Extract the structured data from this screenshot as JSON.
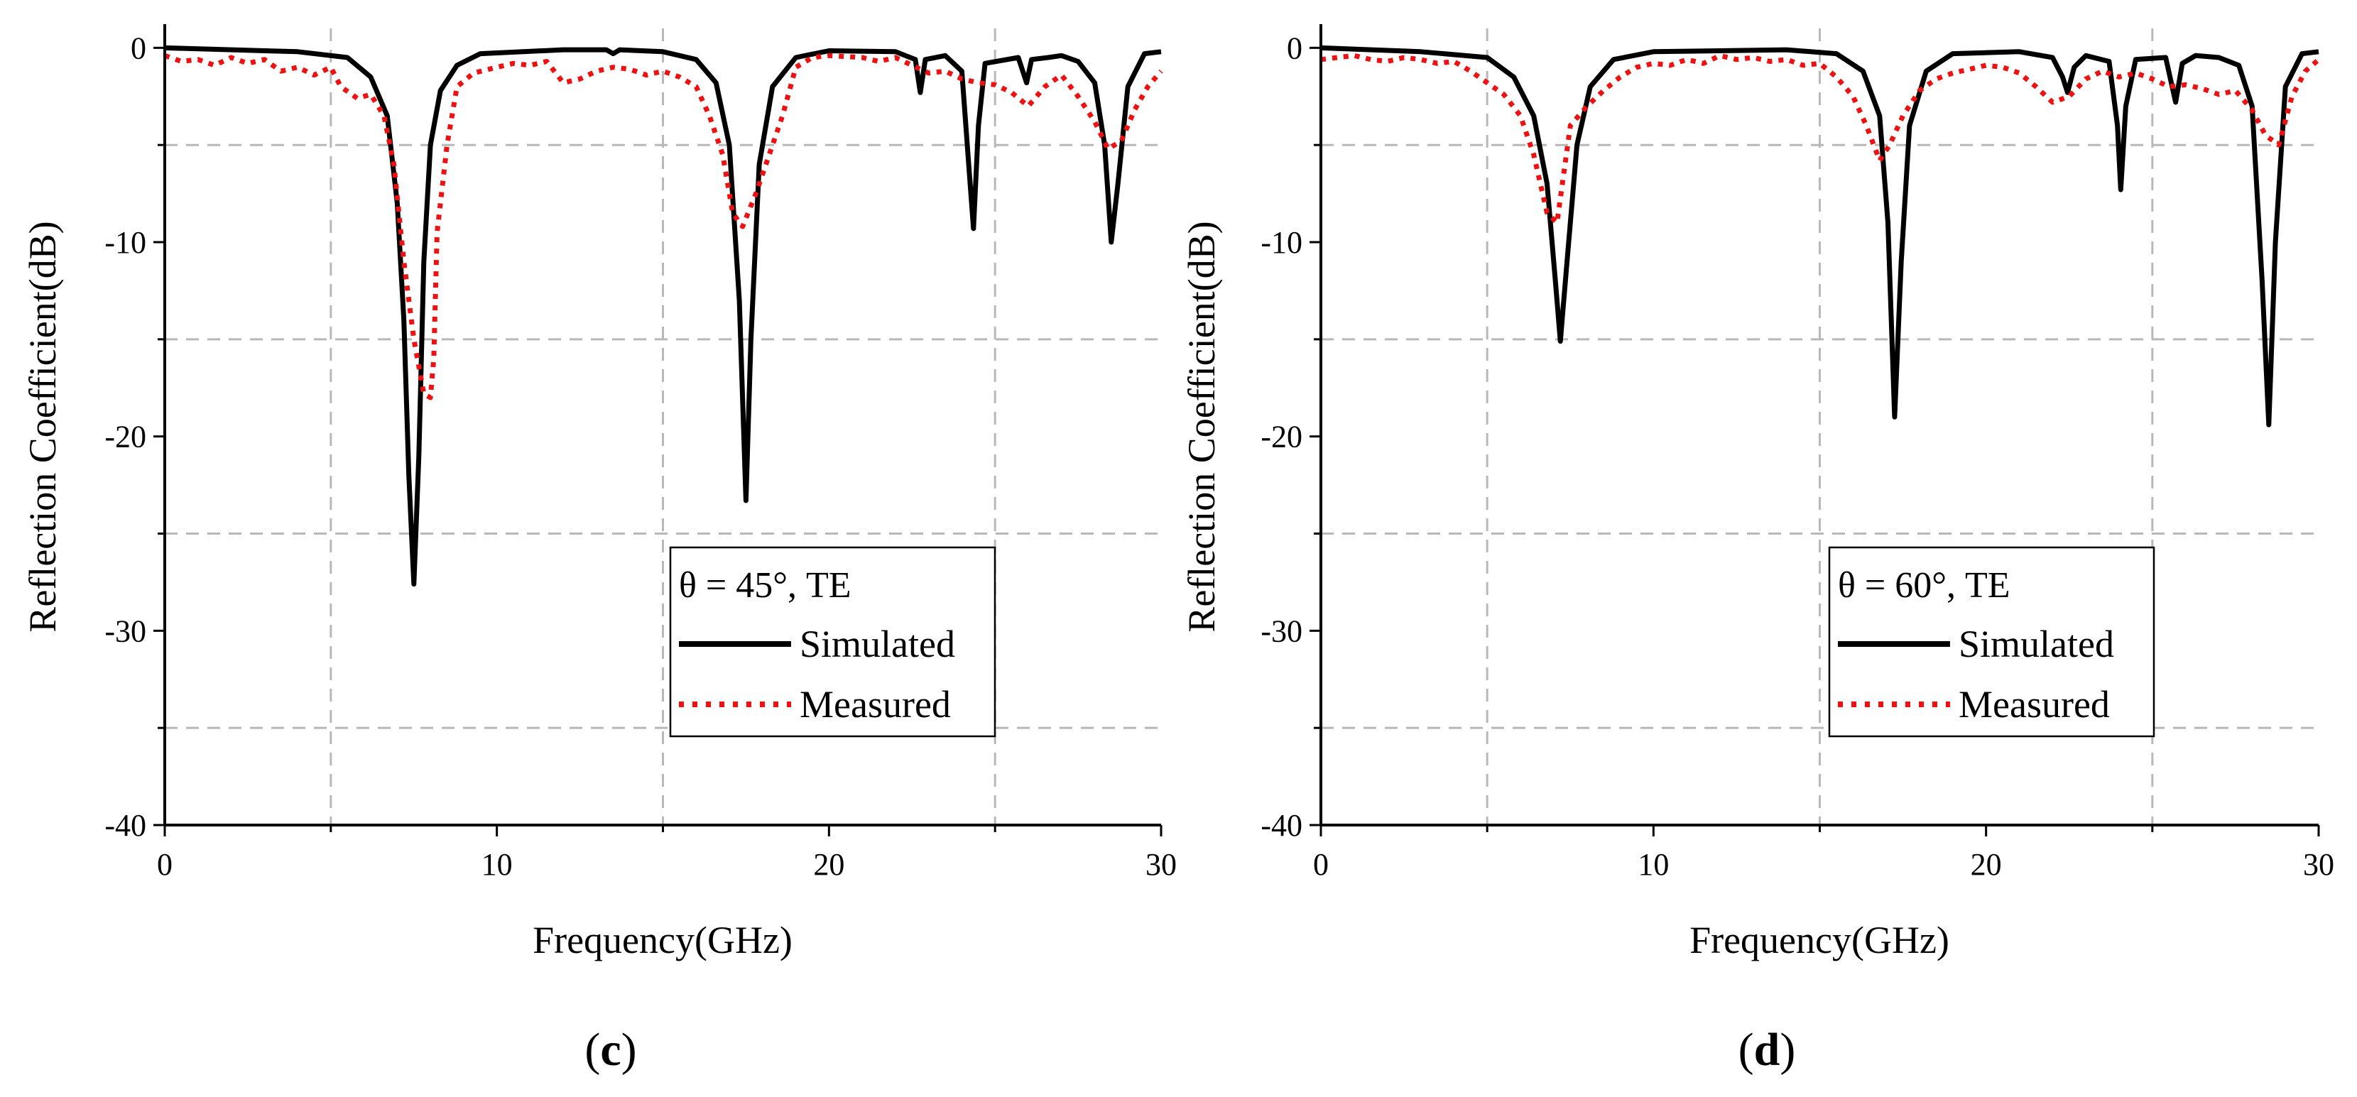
{
  "chart_data": [
    {
      "type": "line",
      "panel_label": "(c)",
      "panel_label_letter": "c",
      "legend_title": "θ = 45°, TE",
      "xlabel": "Frequency(GHz)",
      "ylabel": "Reflection Coefficient(dB)",
      "xlim": [
        0,
        30
      ],
      "ylim": [
        -40,
        1
      ],
      "xticks": [
        0,
        10,
        20,
        30
      ],
      "yticks": [
        -40,
        -30,
        -20,
        -10,
        0
      ],
      "grid": true,
      "legend_position": "lower-right",
      "series": [
        {
          "name": "Simulated",
          "style": "solid",
          "color": "#000000",
          "points": [
            [
              0,
              0
            ],
            [
              4,
              -0.2
            ],
            [
              5.5,
              -0.5
            ],
            [
              6.2,
              -1.5
            ],
            [
              6.7,
              -3.5
            ],
            [
              7.0,
              -8
            ],
            [
              7.2,
              -14
            ],
            [
              7.35,
              -22
            ],
            [
              7.5,
              -27.6
            ],
            [
              7.65,
              -21
            ],
            [
              7.8,
              -11
            ],
            [
              8.0,
              -5
            ],
            [
              8.3,
              -2.2
            ],
            [
              8.8,
              -0.9
            ],
            [
              9.5,
              -0.3
            ],
            [
              12,
              -0.1
            ],
            [
              13.3,
              -0.1
            ],
            [
              13.5,
              -0.3
            ],
            [
              13.7,
              -0.1
            ],
            [
              15,
              -0.2
            ],
            [
              16,
              -0.6
            ],
            [
              16.6,
              -1.8
            ],
            [
              17.0,
              -5
            ],
            [
              17.3,
              -13
            ],
            [
              17.5,
              -23.3
            ],
            [
              17.65,
              -15
            ],
            [
              17.9,
              -6
            ],
            [
              18.3,
              -2
            ],
            [
              19,
              -0.5
            ],
            [
              20,
              -0.15
            ],
            [
              22,
              -0.2
            ],
            [
              22.6,
              -0.6
            ],
            [
              22.75,
              -2.3
            ],
            [
              22.9,
              -0.6
            ],
            [
              23.5,
              -0.4
            ],
            [
              24.0,
              -1.2
            ],
            [
              24.25,
              -7
            ],
            [
              24.35,
              -9.3
            ],
            [
              24.5,
              -4
            ],
            [
              24.7,
              -0.8
            ],
            [
              25.7,
              -0.5
            ],
            [
              25.95,
              -1.8
            ],
            [
              26.1,
              -0.6
            ],
            [
              26.6,
              -0.5
            ],
            [
              27.0,
              -0.4
            ],
            [
              27.5,
              -0.7
            ],
            [
              28.0,
              -1.8
            ],
            [
              28.3,
              -5
            ],
            [
              28.5,
              -10
            ],
            [
              28.7,
              -7
            ],
            [
              29.0,
              -2
            ],
            [
              29.5,
              -0.3
            ],
            [
              30,
              -0.2
            ]
          ]
        },
        {
          "name": "Measured",
          "style": "dotted",
          "color": "#ee1111",
          "points": [
            [
              0,
              -0.4
            ],
            [
              0.5,
              -0.7
            ],
            [
              1,
              -0.6
            ],
            [
              1.5,
              -0.9
            ],
            [
              2,
              -0.5
            ],
            [
              2.5,
              -0.8
            ],
            [
              3,
              -0.6
            ],
            [
              3.5,
              -1.2
            ],
            [
              4,
              -1.0
            ],
            [
              4.5,
              -1.4
            ],
            [
              5,
              -1.0
            ],
            [
              5.3,
              -2.0
            ],
            [
              5.8,
              -2.6
            ],
            [
              6.2,
              -2.4
            ],
            [
              6.6,
              -3.5
            ],
            [
              6.9,
              -6
            ],
            [
              7.2,
              -11
            ],
            [
              7.5,
              -15
            ],
            [
              7.8,
              -17.8
            ],
            [
              8.0,
              -18
            ],
            [
              8.1,
              -16
            ],
            [
              8.2,
              -9.5
            ],
            [
              8.5,
              -5
            ],
            [
              8.8,
              -2.0
            ],
            [
              9.3,
              -1.3
            ],
            [
              10,
              -1.0
            ],
            [
              10.5,
              -0.8
            ],
            [
              11,
              -0.9
            ],
            [
              11.5,
              -0.7
            ],
            [
              12,
              -1.8
            ],
            [
              12.5,
              -1.6
            ],
            [
              13,
              -1.2
            ],
            [
              13.5,
              -1.0
            ],
            [
              14,
              -1.1
            ],
            [
              14.5,
              -1.4
            ],
            [
              15,
              -1.2
            ],
            [
              15.5,
              -1.5
            ],
            [
              16,
              -2.0
            ],
            [
              16.4,
              -3.5
            ],
            [
              16.8,
              -5.5
            ],
            [
              17.1,
              -8.5
            ],
            [
              17.4,
              -9.2
            ],
            [
              17.8,
              -7.5
            ],
            [
              18.2,
              -5.5
            ],
            [
              18.6,
              -3.5
            ],
            [
              19,
              -1.0
            ],
            [
              19.5,
              -0.5
            ],
            [
              20,
              -0.4
            ],
            [
              21,
              -0.5
            ],
            [
              21.5,
              -0.7
            ],
            [
              22,
              -0.5
            ],
            [
              22.5,
              -0.9
            ],
            [
              23,
              -1.3
            ],
            [
              23.5,
              -1.2
            ],
            [
              24,
              -1.6
            ],
            [
              24.5,
              -1.8
            ],
            [
              25,
              -1.9
            ],
            [
              25.5,
              -2.3
            ],
            [
              26,
              -3.0
            ],
            [
              26.5,
              -2.0
            ],
            [
              27,
              -1.4
            ],
            [
              27.5,
              -2.5
            ],
            [
              28,
              -3.8
            ],
            [
              28.4,
              -5.2
            ],
            [
              28.8,
              -4.8
            ],
            [
              29.2,
              -3.2
            ],
            [
              29.6,
              -2.0
            ],
            [
              30,
              -1.2
            ]
          ]
        }
      ]
    },
    {
      "type": "line",
      "panel_label": "(d)",
      "panel_label_letter": "d",
      "legend_title": "θ = 60°, TE",
      "xlabel": "Frequency(GHz)",
      "ylabel": "Reflection Coefficient(dB)",
      "xlim": [
        0,
        30
      ],
      "ylim": [
        -40,
        1
      ],
      "xticks": [
        0,
        10,
        20,
        30
      ],
      "yticks": [
        -40,
        -30,
        -20,
        -10,
        0
      ],
      "grid": true,
      "legend_position": "lower-right",
      "series": [
        {
          "name": "Simulated",
          "style": "solid",
          "color": "#000000",
          "points": [
            [
              0,
              0
            ],
            [
              3,
              -0.2
            ],
            [
              5,
              -0.5
            ],
            [
              5.8,
              -1.5
            ],
            [
              6.4,
              -3.5
            ],
            [
              6.8,
              -7
            ],
            [
              7.05,
              -12
            ],
            [
              7.2,
              -15.1
            ],
            [
              7.4,
              -11
            ],
            [
              7.7,
              -5
            ],
            [
              8.1,
              -2
            ],
            [
              8.8,
              -0.6
            ],
            [
              10,
              -0.2
            ],
            [
              14,
              -0.1
            ],
            [
              15.5,
              -0.3
            ],
            [
              16.3,
              -1.2
            ],
            [
              16.8,
              -3.5
            ],
            [
              17.05,
              -9
            ],
            [
              17.25,
              -19
            ],
            [
              17.45,
              -11
            ],
            [
              17.7,
              -4
            ],
            [
              18.2,
              -1.2
            ],
            [
              19,
              -0.3
            ],
            [
              21,
              -0.2
            ],
            [
              22,
              -0.5
            ],
            [
              22.3,
              -1.5
            ],
            [
              22.45,
              -2.3
            ],
            [
              22.65,
              -1.0
            ],
            [
              23,
              -0.4
            ],
            [
              23.7,
              -0.7
            ],
            [
              23.95,
              -4
            ],
            [
              24.05,
              -7.3
            ],
            [
              24.2,
              -3
            ],
            [
              24.5,
              -0.6
            ],
            [
              25.4,
              -0.5
            ],
            [
              25.7,
              -2.8
            ],
            [
              25.9,
              -0.8
            ],
            [
              26.3,
              -0.4
            ],
            [
              27,
              -0.5
            ],
            [
              27.6,
              -0.9
            ],
            [
              28.0,
              -3
            ],
            [
              28.3,
              -12
            ],
            [
              28.5,
              -19.4
            ],
            [
              28.7,
              -10
            ],
            [
              29.0,
              -2
            ],
            [
              29.5,
              -0.3
            ],
            [
              30,
              -0.2
            ]
          ]
        },
        {
          "name": "Measured",
          "style": "dotted",
          "color": "#ee1111",
          "points": [
            [
              0,
              -0.6
            ],
            [
              0.5,
              -0.5
            ],
            [
              1,
              -0.4
            ],
            [
              1.5,
              -0.6
            ],
            [
              2,
              -0.7
            ],
            [
              2.5,
              -0.5
            ],
            [
              3,
              -0.6
            ],
            [
              3.5,
              -0.8
            ],
            [
              4,
              -0.7
            ],
            [
              4.5,
              -1.2
            ],
            [
              5,
              -1.8
            ],
            [
              5.5,
              -2.4
            ],
            [
              6,
              -3.5
            ],
            [
              6.4,
              -5.5
            ],
            [
              6.8,
              -8.5
            ],
            [
              7.1,
              -9.0
            ],
            [
              7.3,
              -6.5
            ],
            [
              7.5,
              -4
            ],
            [
              8,
              -3
            ],
            [
              8.5,
              -2.2
            ],
            [
              9,
              -1.5
            ],
            [
              9.5,
              -1.0
            ],
            [
              10,
              -0.8
            ],
            [
              10.5,
              -0.9
            ],
            [
              11,
              -0.6
            ],
            [
              11.5,
              -0.8
            ],
            [
              12,
              -0.4
            ],
            [
              12.5,
              -0.6
            ],
            [
              13,
              -0.5
            ],
            [
              13.5,
              -0.7
            ],
            [
              14,
              -0.6
            ],
            [
              14.5,
              -0.9
            ],
            [
              15,
              -0.8
            ],
            [
              15.5,
              -1.5
            ],
            [
              16,
              -2.5
            ],
            [
              16.4,
              -4.0
            ],
            [
              16.8,
              -5.8
            ],
            [
              17.1,
              -5.0
            ],
            [
              17.5,
              -3.5
            ],
            [
              18,
              -2.2
            ],
            [
              18.5,
              -1.6
            ],
            [
              19,
              -1.3
            ],
            [
              19.5,
              -1.1
            ],
            [
              20,
              -0.9
            ],
            [
              20.5,
              -1.0
            ],
            [
              21,
              -1.3
            ],
            [
              21.5,
              -2.0
            ],
            [
              22,
              -2.8
            ],
            [
              22.5,
              -2.5
            ],
            [
              23,
              -1.6
            ],
            [
              23.5,
              -1.2
            ],
            [
              24,
              -1.5
            ],
            [
              24.5,
              -1.3
            ],
            [
              25,
              -1.6
            ],
            [
              25.5,
              -2.0
            ],
            [
              26,
              -1.9
            ],
            [
              26.5,
              -2.1
            ],
            [
              27,
              -2.4
            ],
            [
              27.5,
              -2.2
            ],
            [
              28,
              -3.2
            ],
            [
              28.4,
              -4.5
            ],
            [
              28.8,
              -5.0
            ],
            [
              29.2,
              -2.5
            ],
            [
              29.6,
              -1.2
            ],
            [
              30,
              -0.6
            ]
          ]
        }
      ]
    }
  ]
}
